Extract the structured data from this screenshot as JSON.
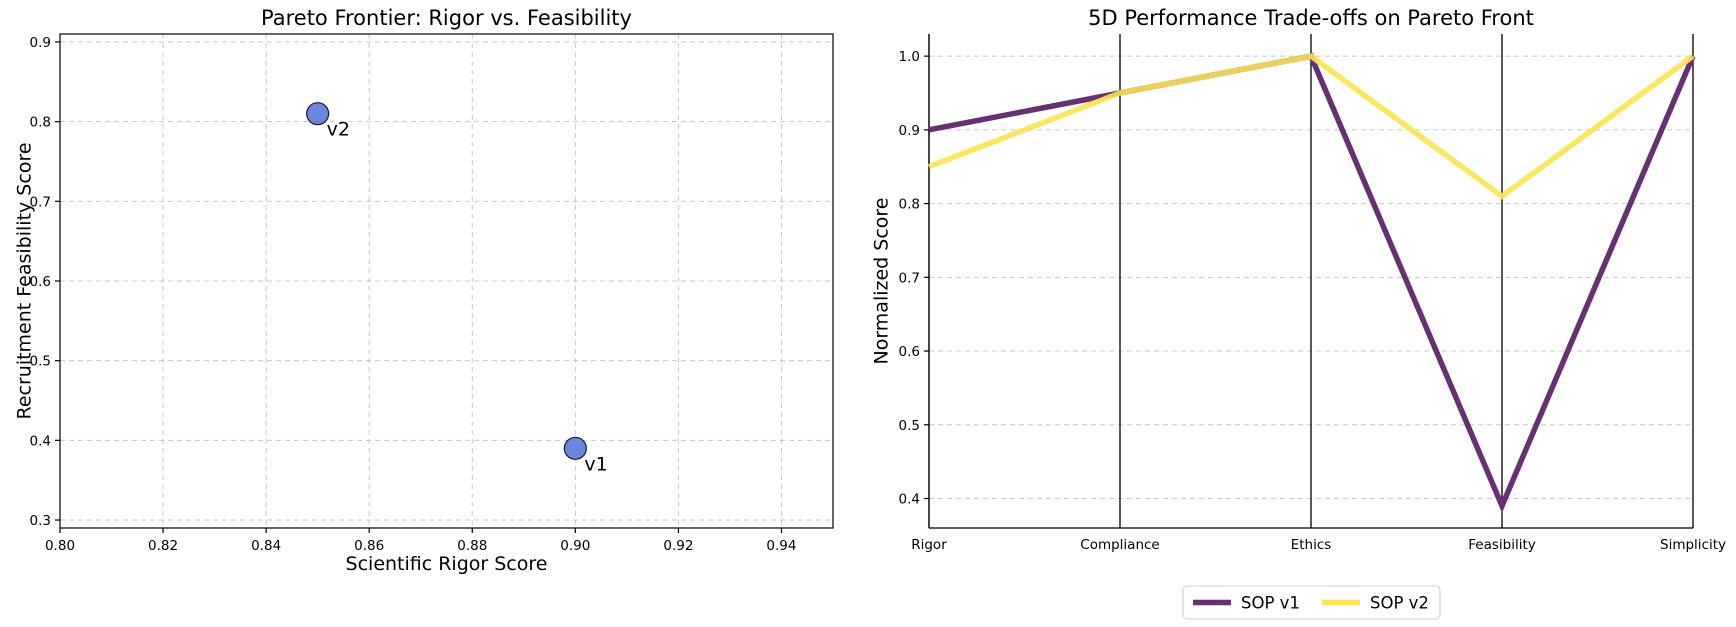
{
  "chart_data": [
    {
      "type": "scatter",
      "title": "Pareto Frontier: Rigor vs. Feasibility",
      "xlabel": "Scientific Rigor Score",
      "ylabel": "Recruitment Feasibility Score",
      "xlim": [
        0.8,
        0.95
      ],
      "ylim": [
        0.29,
        0.91
      ],
      "xticks": [
        0.8,
        0.82,
        0.84,
        0.86,
        0.88,
        0.9,
        0.92,
        0.94
      ],
      "xtick_labels": [
        "0.80",
        "0.82",
        "0.84",
        "0.86",
        "0.88",
        "0.90",
        "0.92",
        "0.94"
      ],
      "yticks": [
        0.3,
        0.4,
        0.5,
        0.6,
        0.7,
        0.8,
        0.9
      ],
      "ytick_labels": [
        "0.3",
        "0.4",
        "0.5",
        "0.6",
        "0.7",
        "0.8",
        "0.9"
      ],
      "grid": true,
      "point_color": "#6a87e0",
      "points": [
        {
          "label": "v1",
          "x": 0.9,
          "y": 0.39
        },
        {
          "label": "v2",
          "x": 0.85,
          "y": 0.81
        }
      ]
    },
    {
      "type": "line",
      "title": "5D Performance Trade-offs on Pareto Front",
      "xlabel": "",
      "ylabel": "Normalized Score",
      "categories": [
        "Rigor",
        "Compliance",
        "Ethics",
        "Feasibility",
        "Simplicity"
      ],
      "ylim": [
        0.36,
        1.03
      ],
      "yticks": [
        0.4,
        0.5,
        0.6,
        0.7,
        0.8,
        0.9,
        1.0
      ],
      "ytick_labels": [
        "0.4",
        "0.5",
        "0.6",
        "0.7",
        "0.8",
        "0.9",
        "1.0"
      ],
      "grid": true,
      "legend_position": "bottom-center",
      "series": [
        {
          "name": "SOP v1",
          "color": "#682f75",
          "values": [
            0.9,
            0.95,
            1.0,
            0.39,
            1.0
          ]
        },
        {
          "name": "SOP v2",
          "color": "#fbe44c",
          "values": [
            0.85,
            0.95,
            1.0,
            0.81,
            1.0
          ]
        }
      ]
    }
  ]
}
